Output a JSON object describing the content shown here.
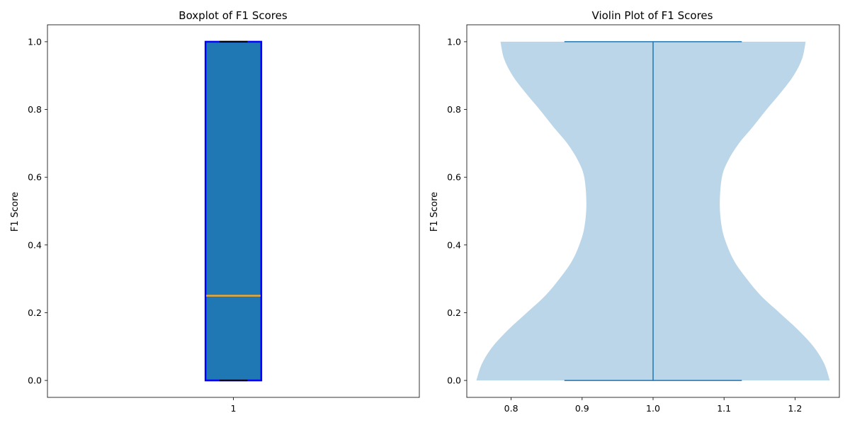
{
  "chart_data": [
    {
      "type": "boxplot",
      "title": "Boxplot of F1 Scores",
      "ylabel": "F1 Score",
      "xlabel": "",
      "ylim": [
        -0.05,
        1.05
      ],
      "xlim": [
        0.5,
        1.5
      ],
      "yticks": [
        0.0,
        0.2,
        0.4,
        0.6,
        0.8,
        1.0
      ],
      "xticks": [
        {
          "value": 1,
          "label": "1"
        }
      ],
      "box": {
        "position": 1,
        "min": 0.0,
        "q1": 0.0,
        "median": 0.25,
        "q3": 1.0,
        "max": 1.0,
        "half_width": 0.075
      },
      "colors": {
        "fill": "#1f77b4",
        "edge": "#0000ff",
        "median": "#f5a623",
        "cap": "#000000"
      }
    },
    {
      "type": "violin",
      "title": "Violin Plot of F1 Scores",
      "ylabel": "F1 Score",
      "xlabel": "",
      "ylim": [
        -0.05,
        1.05
      ],
      "xlim": [
        0.7375,
        1.2625
      ],
      "yticks": [
        0.0,
        0.2,
        0.4,
        0.6,
        0.8,
        1.0
      ],
      "xticks": [
        {
          "value": 0.8,
          "label": "0.8"
        },
        {
          "value": 0.9,
          "label": "0.9"
        },
        {
          "value": 1.0,
          "label": "1.0"
        },
        {
          "value": 1.1,
          "label": "1.1"
        },
        {
          "value": 1.2,
          "label": "1.2"
        }
      ],
      "violin": {
        "position": 1.0,
        "min": 0.0,
        "max": 1.0,
        "cap_half_width": 0.125,
        "profile": [
          {
            "y": 0.0,
            "half_width": 0.249
          },
          {
            "y": 0.05,
            "half_width": 0.241
          },
          {
            "y": 0.1,
            "half_width": 0.226
          },
          {
            "y": 0.15,
            "half_width": 0.204
          },
          {
            "y": 0.2,
            "half_width": 0.178
          },
          {
            "y": 0.25,
            "half_width": 0.152
          },
          {
            "y": 0.3,
            "half_width": 0.132
          },
          {
            "y": 0.35,
            "half_width": 0.115
          },
          {
            "y": 0.4,
            "half_width": 0.104
          },
          {
            "y": 0.45,
            "half_width": 0.097
          },
          {
            "y": 0.52,
            "half_width": 0.094
          },
          {
            "y": 0.6,
            "half_width": 0.097
          },
          {
            "y": 0.65,
            "half_width": 0.106
          },
          {
            "y": 0.7,
            "half_width": 0.121
          },
          {
            "y": 0.75,
            "half_width": 0.141
          },
          {
            "y": 0.8,
            "half_width": 0.16
          },
          {
            "y": 0.85,
            "half_width": 0.18
          },
          {
            "y": 0.9,
            "half_width": 0.198
          },
          {
            "y": 0.95,
            "half_width": 0.21
          },
          {
            "y": 1.0,
            "half_width": 0.215
          }
        ]
      },
      "colors": {
        "fill": "#bbd6e8",
        "line": "#1f77b4"
      }
    }
  ]
}
